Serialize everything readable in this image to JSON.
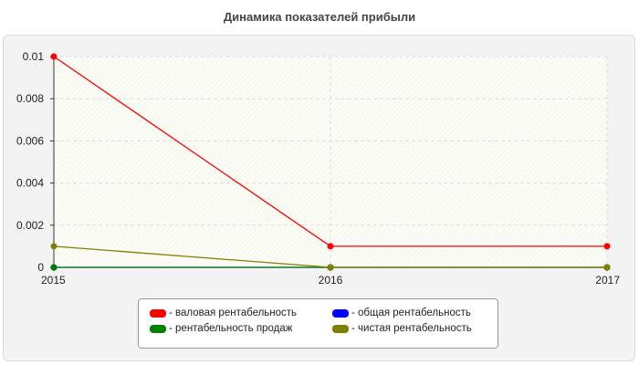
{
  "chart_data": {
    "type": "line",
    "title": "Динамика показателей прибыли",
    "xlabel": "",
    "ylabel": "",
    "x": [
      "2015",
      "2016",
      "2017"
    ],
    "ylim": [
      0,
      0.01
    ],
    "yticks": [
      "0",
      "0.002",
      "0.004",
      "0.006",
      "0.008",
      "0.01"
    ],
    "grid": true,
    "legend_position": "bottom-center",
    "series": [
      {
        "name": "- валовая рентабельность",
        "color": "#ff0000",
        "values": [
          0.01,
          0.001,
          0.001
        ]
      },
      {
        "name": "- общая рентабельность",
        "color": "#0000ff",
        "values": [
          0,
          0,
          0
        ]
      },
      {
        "name": "- рентабельность продаж",
        "color": "#008000",
        "values": [
          0,
          0,
          0
        ]
      },
      {
        "name": "- чистая рентабельность",
        "color": "#808000",
        "values": [
          0.001,
          0,
          0
        ]
      }
    ]
  }
}
